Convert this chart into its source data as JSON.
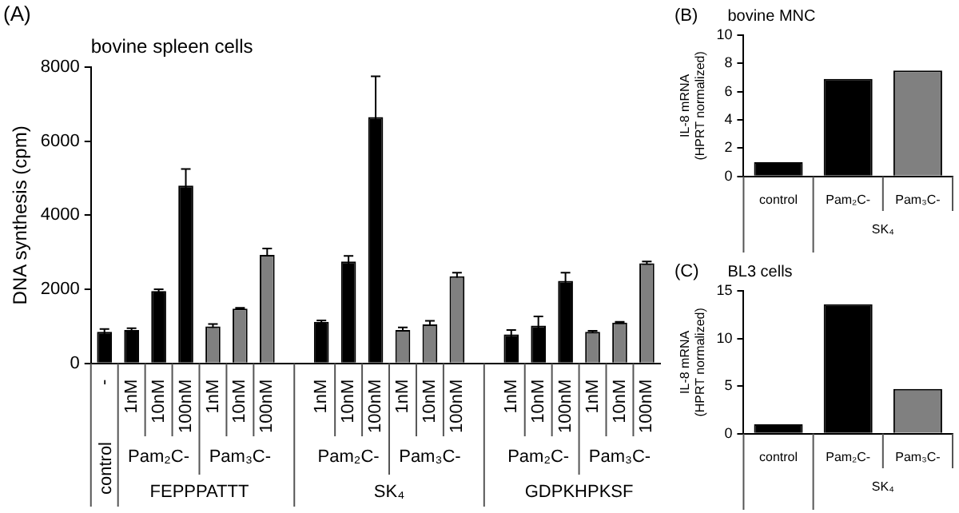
{
  "chart_data": [
    {
      "type": "bar",
      "title": "(A)",
      "subtitle": "bovine spleen cells",
      "ylabel": "DNA synthesis (cpm)",
      "categories": [
        "-",
        "1nM",
        "10nM",
        "100nM",
        "1nM",
        "10nM",
        "100nM",
        null,
        "1nM",
        "10nM",
        "100nM",
        "1nM",
        "10nM",
        "100nM",
        null,
        "1nM",
        "10nM",
        "100nM",
        "1nM",
        "10nM",
        "100nM"
      ],
      "values": [
        850,
        900,
        1950,
        4800,
        1000,
        1480,
        2930,
        null,
        1120,
        2750,
        6650,
        900,
        1050,
        2350,
        null,
        780,
        1020,
        2230,
        850,
        1100,
        2700
      ],
      "errors": [
        80,
        50,
        50,
        450,
        60,
        20,
        170,
        null,
        40,
        150,
        1100,
        70,
        100,
        100,
        null,
        120,
        250,
        220,
        30,
        20,
        50
      ],
      "colors": [
        "#000000",
        "#000000",
        "#000000",
        "#000000",
        "#808080",
        "#808080",
        "#808080",
        null,
        "#000000",
        "#000000",
        "#000000",
        "#808080",
        "#808080",
        "#808080",
        null,
        "#000000",
        "#000000",
        "#000000",
        "#808080",
        "#808080",
        "#808080"
      ],
      "ylim": [
        0,
        8000
      ],
      "yticks": [
        0,
        2000,
        4000,
        6000,
        8000
      ],
      "annotations": [
        "control",
        "Pam₂C-",
        "Pam₃C-",
        "FEPPPATTT",
        "Pam₂C-",
        "Pam₃C-",
        "SK₄",
        "Pam₂C-",
        "Pam₃C-",
        "GDPKHPKSF"
      ]
    },
    {
      "type": "bar",
      "title": "(B)",
      "subtitle": "bovine MNC",
      "ylabel": "IL-8 mRNA\n(HPRT normalized)",
      "categories": [
        "control",
        "Pam₂C-",
        "Pam₃C-"
      ],
      "values": [
        1,
        6.9,
        7.5
      ],
      "colors": [
        "#000000",
        "#000000",
        "#808080"
      ],
      "ylim": [
        0,
        10
      ],
      "yticks": [
        0,
        2,
        4,
        6,
        8,
        10
      ],
      "annotations": [
        "SK₄"
      ]
    },
    {
      "type": "bar",
      "title": "(C)",
      "subtitle": "BL3 cells",
      "ylabel": "IL-8 mRNA\n(HPRT normalized)",
      "categories": [
        "control",
        "Pam₂C-",
        "Pam₃C-"
      ],
      "values": [
        1,
        13.6,
        4.7
      ],
      "colors": [
        "#000000",
        "#000000",
        "#808080"
      ],
      "ylim": [
        0,
        15
      ],
      "yticks": [
        0,
        5,
        10,
        15
      ],
      "annotations": [
        "SK₄"
      ]
    }
  ]
}
